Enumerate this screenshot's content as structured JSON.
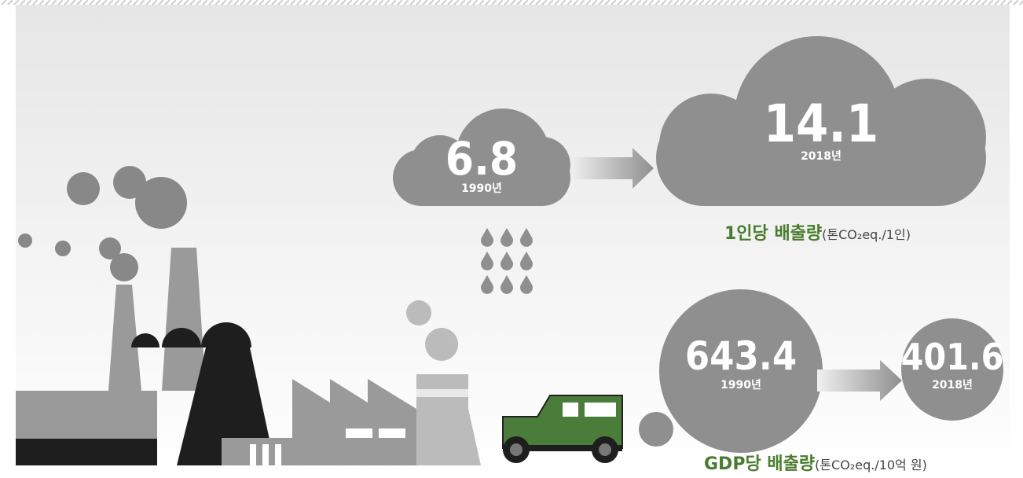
{
  "per_capita": {
    "title": "1인당 배출량",
    "unit": "(톤CO₂eq./1인)",
    "start": {
      "value": "6.8",
      "year": "1990년"
    },
    "end": {
      "value": "14.1",
      "year": "2018년"
    }
  },
  "per_gdp": {
    "title": "GDP당 배출량",
    "unit": "(톤CO₂eq./10억 원)",
    "start": {
      "value": "643.4",
      "year": "1990년"
    },
    "end": {
      "value": "401.6",
      "year": "2018년"
    }
  }
}
